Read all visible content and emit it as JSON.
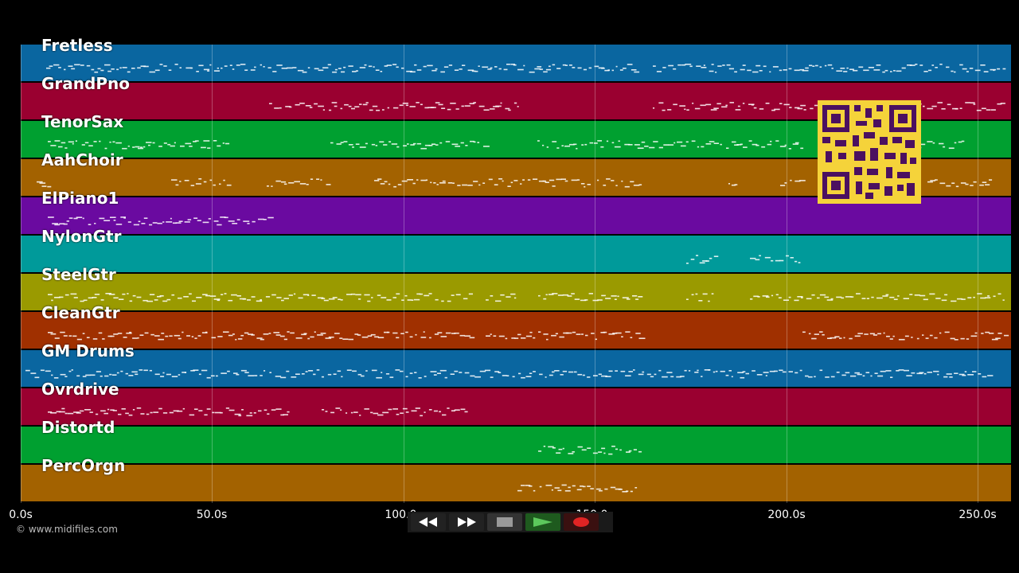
{
  "lanes": [
    {
      "label": "Fretless",
      "color": "#0a66a0"
    },
    {
      "label": "GrandPno",
      "color": "#9a0030"
    },
    {
      "label": "TenorSax",
      "color": "#00a030"
    },
    {
      "label": "AahChoir",
      "color": "#a36200"
    },
    {
      "label": "ElPiano1",
      "color": "#6a0aa0"
    },
    {
      "label": "NylonGtr",
      "color": "#009a9a"
    },
    {
      "label": "SteelGtr",
      "color": "#9a9a00"
    },
    {
      "label": "CleanGtr",
      "color": "#a03000"
    },
    {
      "label": "GM Drums",
      "color": "#0a66a0"
    },
    {
      "label": "Ovrdrive",
      "color": "#9a0030"
    },
    {
      "label": "Distortd",
      "color": "#00a030"
    },
    {
      "label": "PercOrgn",
      "color": "#a36200"
    }
  ],
  "axis": {
    "ticks": [
      "0.0s",
      "50.0s",
      "100.0s",
      "150.0s",
      "200.0s",
      "250.0s"
    ]
  },
  "copyright": "© www.midifiles.com",
  "transport": {
    "rewind_icon": "rewind-icon",
    "forward_icon": "fast-forward-icon",
    "stop_icon": "stop-icon",
    "play_icon": "play-icon",
    "record_icon": "record-icon"
  },
  "qr_code_icon": "qr-code-icon"
}
